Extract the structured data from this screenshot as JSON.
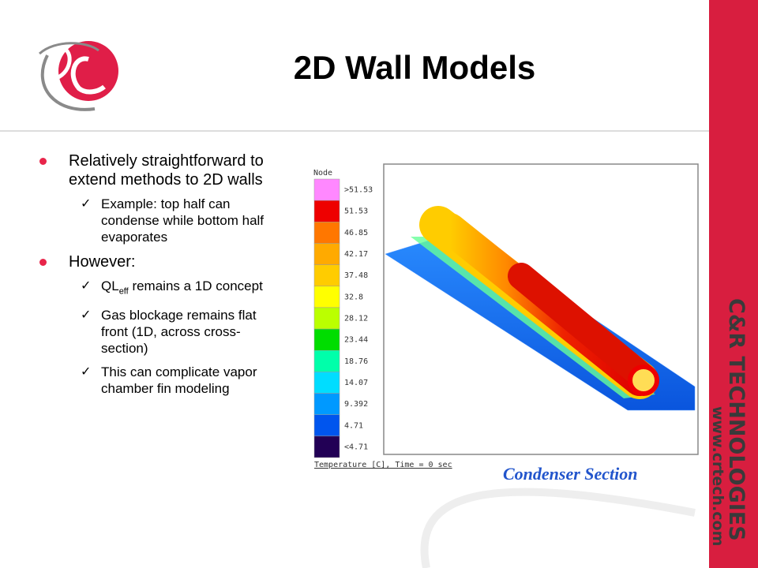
{
  "header": {
    "title": "2D Wall Models"
  },
  "bullets": [
    {
      "text": "Relatively straightforward to extend methods to 2D walls",
      "items": [
        "Example: top half can condense while bottom half evaporates"
      ]
    },
    {
      "text": "However:",
      "rich_item": {
        "base": "QL",
        "sub": "eff",
        "rest": " remains a 1D concept"
      },
      "items": [
        "Gas blockage remains flat front (1D, across cross-section)",
        "This can complicate vapor chamber fin modeling"
      ]
    }
  ],
  "legend": {
    "title": "Node",
    "entries": [
      {
        "label": ">51.53",
        "color": "#ff88ff"
      },
      {
        "label": "51.53",
        "color": "#ee0000"
      },
      {
        "label": "46.85",
        "color": "#ff7700"
      },
      {
        "label": "42.17",
        "color": "#ffaa00"
      },
      {
        "label": "37.48",
        "color": "#ffcc00"
      },
      {
        "label": "32.8",
        "color": "#ffff00"
      },
      {
        "label": "28.12",
        "color": "#bbff00"
      },
      {
        "label": "23.44",
        "color": "#00dd00"
      },
      {
        "label": "18.76",
        "color": "#00ffaa"
      },
      {
        "label": "14.07",
        "color": "#00ddff"
      },
      {
        "label": "9.392",
        "color": "#0099ff"
      },
      {
        "label": "4.71",
        "color": "#0055ee"
      },
      {
        "label": "<4.71",
        "color": "#220055"
      }
    ],
    "caption": "Temperature [C], Time = 0 sec"
  },
  "figure_caption": "Condenser Section",
  "sidebar": {
    "brand": "C&R TECHNOLOGIES",
    "url": "www.crtech.com"
  }
}
